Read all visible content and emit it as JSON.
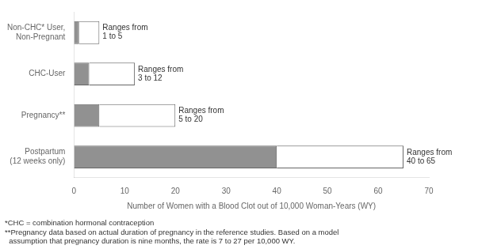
{
  "chart_data": {
    "type": "bar",
    "orientation": "horizontal",
    "stacked": true,
    "categories": [
      "Non-CHC* User,\nNon-Pregnant",
      "CHC-User",
      "Pregnancy**",
      "Postpartum\n(12 weeks only)"
    ],
    "series": [
      {
        "color": "#919191",
        "values": [
          1,
          3,
          5,
          40
        ]
      },
      {
        "color": "#ffffff",
        "values": [
          4,
          9,
          15,
          25
        ]
      }
    ],
    "annotations": [
      "Ranges from\n1 to 5",
      "Ranges from\n3 to 12",
      "Ranges from\n5 to 20",
      "Ranges from\n40 to 65"
    ],
    "xlabel": "Number of Women with a Blood Clot out of 10,000 Woman-Years (WY)",
    "xlim": [
      0,
      70
    ],
    "xticks": [
      0,
      10,
      20,
      30,
      40,
      50,
      60,
      70
    ],
    "grid": false,
    "footnotes": [
      "*CHC = combination hormonal contraception",
      "**Pregnancy data based on actual duration of pregnancy in the reference studies. Based on a model\n  assumption that pregnancy duration is nine months, the rate is 7 to 27 per 10,000 WY."
    ]
  }
}
